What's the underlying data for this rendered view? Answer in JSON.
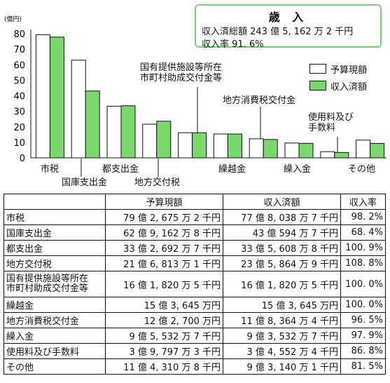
{
  "title_box": {
    "title": "歳 入",
    "line1": "収入済総額 243 億 5, 162 万 2 千円",
    "line2": "収入率 91. 6%"
  },
  "legend": {
    "budget": "予算現額",
    "received": "収入済額"
  },
  "colors": {
    "budget": "#ffffff",
    "received": "#7bd86d",
    "outline": "#111111"
  },
  "chart_data": {
    "type": "bar",
    "ylabel": "(億円)",
    "ylim": [
      0,
      80
    ],
    "yticks": [
      "0",
      "10",
      "20",
      "30",
      "40",
      "50",
      "60",
      "70",
      "80"
    ],
    "categories": [
      "市税",
      "国庫支出金",
      "都支出金",
      "地方交付税",
      "国有提供施設等所在市町村助成交付金等",
      "繰越金",
      "地方消費税交付金",
      "繰入金",
      "使用料及び手数料",
      "その他"
    ],
    "category_labels": [
      "市税",
      "国庫支出金",
      "都支出金",
      "地方交付税",
      "国有提供施設等所在\n市町村助成交付金等",
      "繰越金",
      "地方消費税交付金",
      "繰入金",
      "使用料及び\n手数料",
      "その他"
    ],
    "series": [
      {
        "name": "予算現額",
        "values": [
          79.27,
          62.92,
          33.27,
          21.68,
          16.18,
          15.36,
          12.27,
          9.55,
          3.98,
          11.43
        ]
      },
      {
        "name": "収入済額",
        "values": [
          77.8,
          43.06,
          33.56,
          23.59,
          16.18,
          15.36,
          11.84,
          9.35,
          3.46,
          9.31
        ]
      }
    ]
  },
  "table": {
    "headers": [
      "",
      "予算現額",
      "収入済額",
      "収入率"
    ],
    "rows": [
      [
        "市税",
        "79 億 2, 675 万 2 千円",
        "77 億 8, 038 万 7 千円",
        "98. 2%"
      ],
      [
        "国庫支出金",
        "62 億 9, 162 万 8 千円",
        "43 億 594 万 7 千円",
        "68. 4%"
      ],
      [
        "都支出金",
        "33 億 2, 692 万 7 千円",
        "33 億 5, 608 万 8 千円",
        "100. 9%"
      ],
      [
        "地方交付税",
        "21 億 6, 813 万 1 千円",
        "23 億 5, 864 万 9 千円",
        "108. 8%"
      ],
      [
        "国有提供施設等所在\n市町村助成交付金等",
        "16 億 1, 820 万 5 千円",
        "16 億 1, 820 万 5 千円",
        "100. 0%"
      ],
      [
        "繰越金",
        "15 億 3, 645 万円",
        "15 億 3, 645 万円",
        "100. 0%"
      ],
      [
        "地方消費税交付金",
        "12 億 2, 700 万円",
        "11 億 8, 364 万 4 千円",
        "96. 5%"
      ],
      [
        "繰入金",
        "9 億 5, 532 万 7 千円",
        "9 億 3, 532 万 7 千円",
        "97. 9%"
      ],
      [
        "使用料及び手数料",
        "3 億 9, 797 万 3 千円",
        "3 億 4, 552 万 4 千円",
        "86. 8%"
      ],
      [
        "その他",
        "11 億 4, 310 万 8 千円",
        "9 億 3, 140 万 1 千円",
        "81. 5%"
      ]
    ]
  }
}
